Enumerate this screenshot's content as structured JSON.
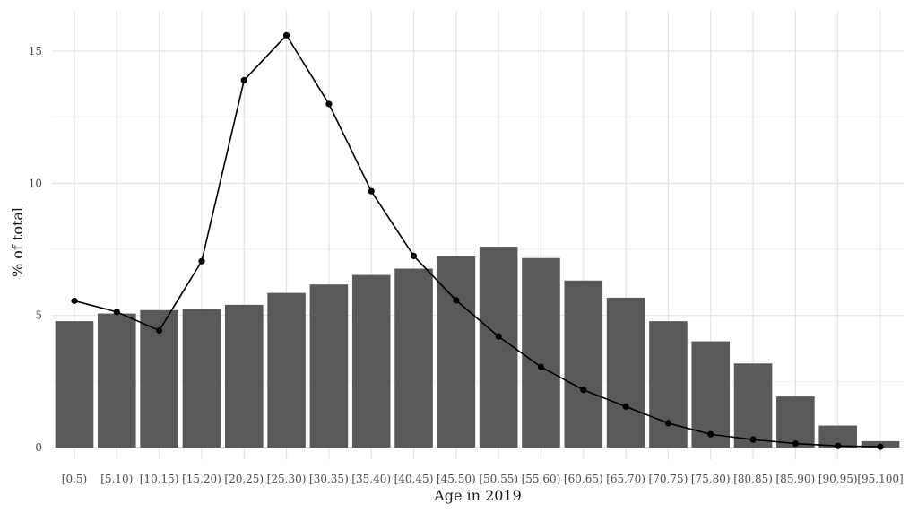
{
  "chart_data": {
    "type": "bar",
    "title": "",
    "xlabel": "Age in 2019",
    "ylabel": "% of total",
    "ylim": [
      0,
      16.2
    ],
    "yticks": [
      0,
      5,
      10,
      15
    ],
    "grid": true,
    "categories": [
      "[0,5)",
      "[5,10)",
      "[10,15)",
      "[15,20)",
      "[20,25)",
      "[25,30)",
      "[30,35)",
      "[35,40)",
      "[40,45)",
      "[45,50)",
      "[50,55)",
      "[55,60)",
      "[60,65)",
      "[65,70)",
      "[70,75)",
      "[75,80)",
      "[80,85)",
      "[85,90)",
      "[90,95)",
      "[95,100]"
    ],
    "series": [
      {
        "type": "bar",
        "color": "#595959",
        "values": [
          4.78,
          5.07,
          5.2,
          5.25,
          5.4,
          5.85,
          6.17,
          6.53,
          6.77,
          7.23,
          7.6,
          7.17,
          6.32,
          5.67,
          4.78,
          4.02,
          3.18,
          1.93,
          0.83,
          0.24
        ]
      },
      {
        "type": "line",
        "color": "#000000",
        "values": [
          5.55,
          5.13,
          4.43,
          7.05,
          13.9,
          15.6,
          13.0,
          9.7,
          7.25,
          5.57,
          4.2,
          3.05,
          2.18,
          1.55,
          0.92,
          0.5,
          0.3,
          0.15,
          0.06,
          0.03
        ]
      }
    ]
  }
}
